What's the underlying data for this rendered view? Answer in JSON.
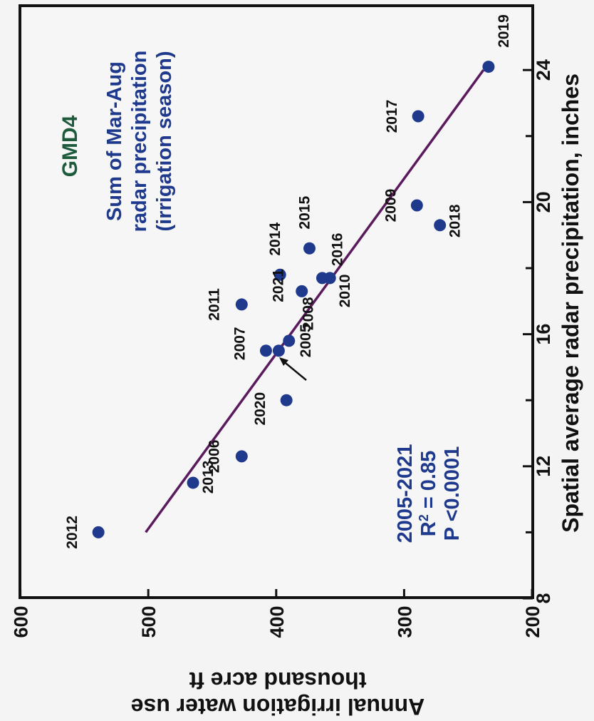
{
  "chart_data": {
    "type": "scatter",
    "orientation": "rotated 90 degrees counter-clockwise",
    "x_axis": {
      "label": "Spatial average radar precipitation, inches",
      "range": [
        8,
        26
      ],
      "ticks": [
        "8",
        "12",
        "16",
        "20",
        "24"
      ],
      "tick_values": [
        8,
        12,
        16,
        20,
        24
      ],
      "minor_tick_values": [
        10,
        14,
        18,
        22
      ]
    },
    "y_axis": {
      "label_line1": "Annual irrigation water use",
      "label_line2": "thousand acre ft",
      "range": [
        200,
        600
      ],
      "ticks": [
        "200",
        "300",
        "400",
        "500",
        "600"
      ],
      "tick_values": [
        200,
        300,
        400,
        500,
        600
      ]
    },
    "title": {
      "region": "GMD4",
      "line1": "Sum of Mar-Aug",
      "line2": "radar precipitation",
      "line3": "(irrigation season)"
    },
    "stats": {
      "period": "2005-2021",
      "r2_prefix": "R",
      "r2_sup": "2",
      "r2_value": " = 0.85",
      "p_value": "P <0.0001"
    },
    "points": [
      {
        "label": "2005",
        "x": 15.8,
        "y": 390
      },
      {
        "label": "2006",
        "x": 12.3,
        "y": 427
      },
      {
        "label": "2007",
        "x": 15.5,
        "y": 408
      },
      {
        "label": "2008",
        "x": 15.5,
        "y": 398
      },
      {
        "label": "2009",
        "x": 19.9,
        "y": 290
      },
      {
        "label": "2010",
        "x": 17.7,
        "y": 358
      },
      {
        "label": "2011",
        "x": 16.9,
        "y": 427
      },
      {
        "label": "2012",
        "x": 10.0,
        "y": 539
      },
      {
        "label": "2013",
        "x": 11.5,
        "y": 465
      },
      {
        "label": "2014",
        "x": 17.8,
        "y": 397
      },
      {
        "label": "2015",
        "x": 18.6,
        "y": 374
      },
      {
        "label": "2016",
        "x": 17.7,
        "y": 364
      },
      {
        "label": "2017",
        "x": 22.6,
        "y": 289
      },
      {
        "label": "2018",
        "x": 19.3,
        "y": 272
      },
      {
        "label": "2019",
        "x": 24.1,
        "y": 234
      },
      {
        "label": "2020",
        "x": 14.0,
        "y": 392
      },
      {
        "label": "2021",
        "x": 17.3,
        "y": 380
      }
    ],
    "regression_line": {
      "x": [
        10.0,
        24.0
      ],
      "y": [
        502,
        238
      ]
    },
    "colors": {
      "points": "#1f3a8c",
      "regression": "#5c1a5e",
      "title_region": "#1e5a3c",
      "title_text": "#1f3a8c",
      "stats_text": "#1f3a8c"
    }
  }
}
